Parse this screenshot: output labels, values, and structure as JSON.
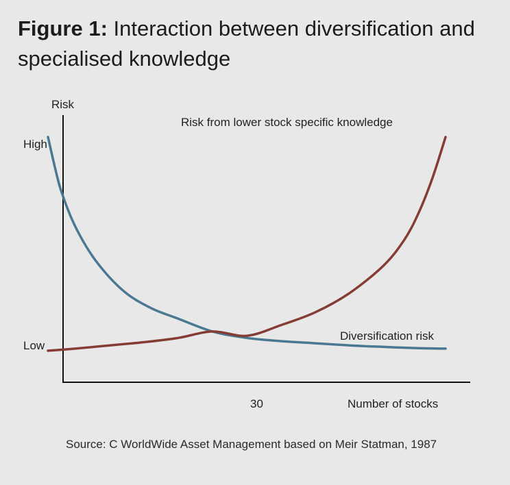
{
  "figure": {
    "label": "Figure 1:",
    "title": "Interaction between diversification and specialised knowledge",
    "source": "Source: C WorldWide Asset Management based on Meir Statman, 1987"
  },
  "chart_data": {
    "type": "line",
    "ylabel": "Risk",
    "xlabel": "Number of stocks",
    "y_tick_labels": [
      "High",
      "Low"
    ],
    "x_tick_labels": [
      "30"
    ],
    "x_marked_value": 30,
    "ylim": [
      0,
      1
    ],
    "xlim": [
      0,
      60
    ],
    "grid": false,
    "series": [
      {
        "name": "Diversification risk",
        "color": "#4a7893",
        "x": [
          1,
          2,
          3,
          5,
          8,
          12,
          16,
          20,
          25,
          30,
          35,
          40,
          45,
          50,
          55,
          59
        ],
        "y": [
          1.0,
          0.86,
          0.74,
          0.58,
          0.42,
          0.28,
          0.2,
          0.15,
          0.09,
          0.06,
          0.045,
          0.035,
          0.025,
          0.018,
          0.012,
          0.01
        ]
      },
      {
        "name": "Risk from lower stock specific knowledge",
        "color": "#843c35",
        "x": [
          1,
          5,
          10,
          15,
          20,
          25,
          30,
          35,
          40,
          45,
          50,
          53,
          55,
          57,
          59
        ],
        "y": [
          0.0,
          0.01,
          0.025,
          0.04,
          0.06,
          0.09,
          0.07,
          0.12,
          0.18,
          0.27,
          0.4,
          0.52,
          0.64,
          0.8,
          1.0
        ]
      }
    ]
  }
}
